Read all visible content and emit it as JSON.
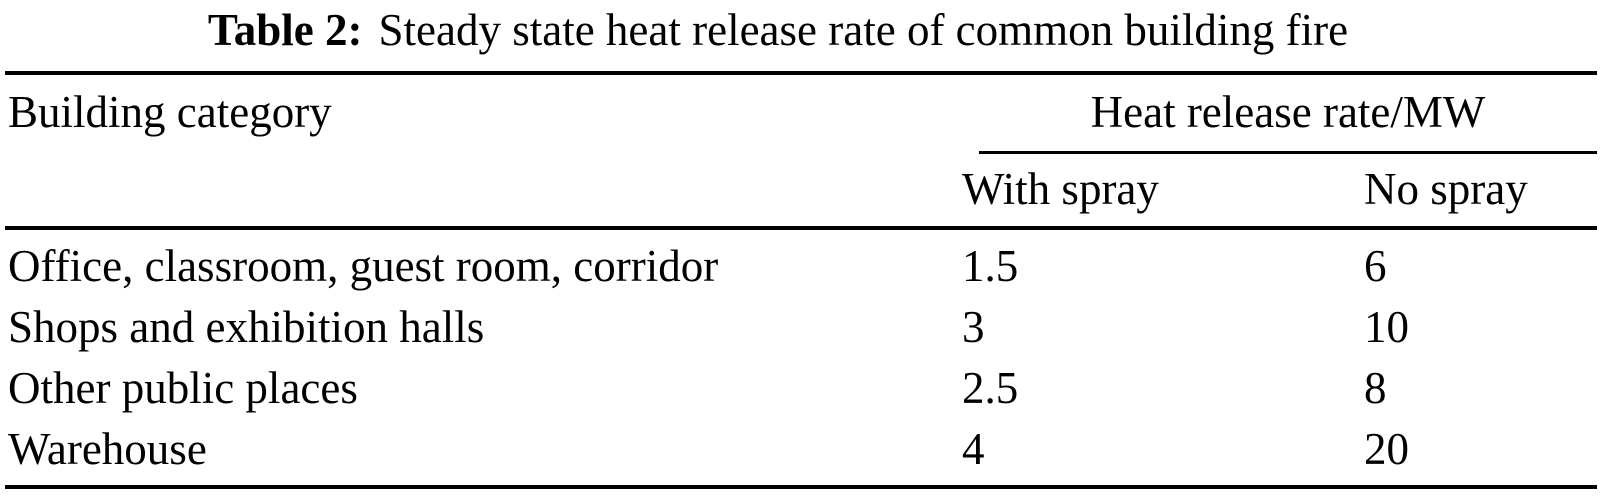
{
  "caption": {
    "label": "Table 2:",
    "text": "Steady state heat release rate of common building fire"
  },
  "table": {
    "header": {
      "category": "Building category",
      "group": "Heat release rate/MW",
      "with_spray": "With spray",
      "no_spray": "No spray"
    },
    "rows": [
      {
        "category": "Office, classroom, guest room, corridor",
        "with_spray": "1.5",
        "no_spray": "6"
      },
      {
        "category": "Shops and exhibition halls",
        "with_spray": "3",
        "no_spray": "10"
      },
      {
        "category": "Other public places",
        "with_spray": "2.5",
        "no_spray": "8"
      },
      {
        "category": "Warehouse",
        "with_spray": "4",
        "no_spray": "20"
      }
    ]
  },
  "chart_data": {
    "type": "table",
    "title": "Table 2: Steady state heat release rate of common building fire",
    "column_group": "Heat release rate/MW",
    "columns": [
      "Building category",
      "With spray",
      "No spray"
    ],
    "rows": [
      [
        "Office, classroom, guest room, corridor",
        1.5,
        6
      ],
      [
        "Shops and exhibition halls",
        3,
        10
      ],
      [
        "Other public places",
        2.5,
        8
      ],
      [
        "Warehouse",
        4,
        20
      ]
    ]
  },
  "colors": {
    "background": "#ffffff",
    "text": "#000000",
    "rule": "#000000"
  }
}
